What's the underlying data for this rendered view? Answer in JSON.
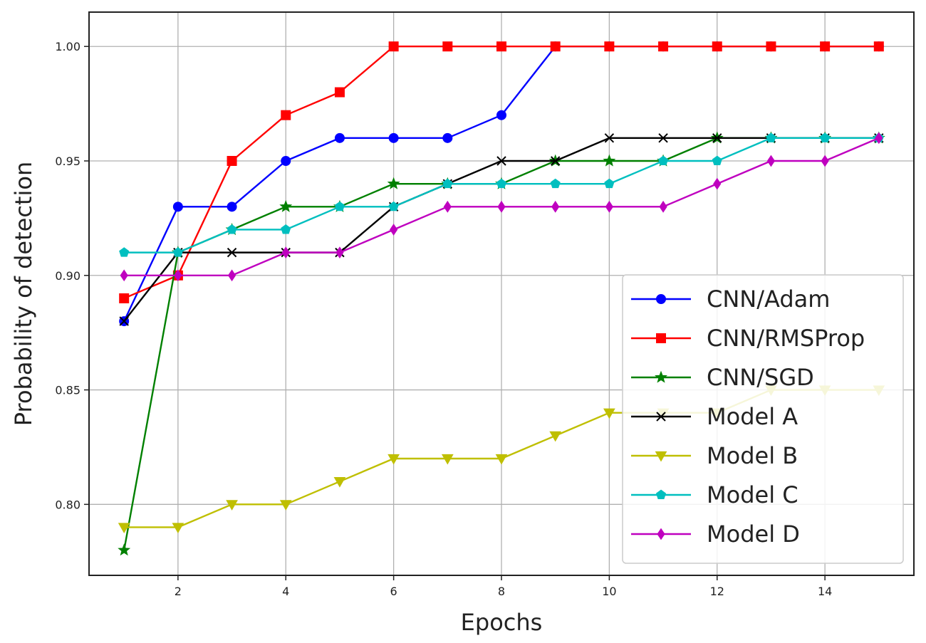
{
  "chart_data": {
    "type": "line",
    "title": "",
    "xlabel": "Epochs",
    "ylabel": "Probability of detection",
    "xlim": [
      0.35,
      15.65
    ],
    "ylim": [
      0.769,
      1.015
    ],
    "grid": true,
    "legend_position": "lower-right",
    "x": [
      1,
      2,
      3,
      4,
      5,
      6,
      7,
      8,
      9,
      10,
      11,
      12,
      13,
      14,
      15
    ],
    "xticks": [
      2,
      4,
      6,
      8,
      10,
      12,
      14
    ],
    "xtick_labels": [
      "2",
      "4",
      "6",
      "8",
      "10",
      "12",
      "14"
    ],
    "yticks": [
      0.8,
      0.85,
      0.9,
      0.95,
      1.0
    ],
    "ytick_labels": [
      "0.80",
      "0.85",
      "0.90",
      "0.95",
      "1.00"
    ],
    "series": [
      {
        "name": "CNN/Adam",
        "color": "#0000ff",
        "marker": "circle",
        "values": [
          0.88,
          0.93,
          0.93,
          0.95,
          0.96,
          0.96,
          0.96,
          0.97,
          1.0,
          1.0,
          1.0,
          1.0,
          1.0,
          1.0,
          1.0
        ]
      },
      {
        "name": "CNN/RMSProp",
        "color": "#ff0000",
        "marker": "square",
        "values": [
          0.89,
          0.9,
          0.95,
          0.97,
          0.98,
          1.0,
          1.0,
          1.0,
          1.0,
          1.0,
          1.0,
          1.0,
          1.0,
          1.0,
          1.0
        ]
      },
      {
        "name": "CNN/SGD",
        "color": "#008000",
        "marker": "star",
        "values": [
          0.78,
          0.91,
          0.92,
          0.93,
          0.93,
          0.94,
          0.94,
          0.94,
          0.95,
          0.95,
          0.95,
          0.96,
          0.96,
          0.96,
          0.96
        ]
      },
      {
        "name": "Model A",
        "color": "#000000",
        "marker": "x",
        "values": [
          0.88,
          0.91,
          0.91,
          0.91,
          0.91,
          0.93,
          0.94,
          0.95,
          0.95,
          0.96,
          0.96,
          0.96,
          0.96,
          0.96,
          0.96
        ]
      },
      {
        "name": "Model B",
        "color": "#bfbf00",
        "marker": "triangle-down",
        "values": [
          0.79,
          0.79,
          0.8,
          0.8,
          0.81,
          0.82,
          0.82,
          0.82,
          0.83,
          0.84,
          0.84,
          0.84,
          0.85,
          0.85,
          0.85
        ]
      },
      {
        "name": "Model C",
        "color": "#00bfbf",
        "marker": "pentagon",
        "values": [
          0.91,
          0.91,
          0.92,
          0.92,
          0.93,
          0.93,
          0.94,
          0.94,
          0.94,
          0.94,
          0.95,
          0.95,
          0.96,
          0.96,
          0.96
        ]
      },
      {
        "name": "Model D",
        "color": "#bf00bf",
        "marker": "diamond",
        "values": [
          0.9,
          0.9,
          0.9,
          0.91,
          0.91,
          0.92,
          0.93,
          0.93,
          0.93,
          0.93,
          0.93,
          0.94,
          0.95,
          0.95,
          0.96
        ]
      }
    ]
  }
}
